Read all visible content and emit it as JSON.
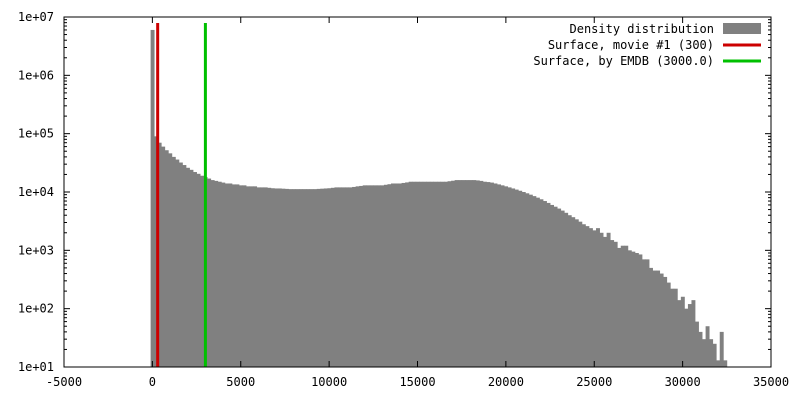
{
  "chart_data": {
    "type": "bar",
    "subtype": "histogram",
    "title": "",
    "xlabel": "",
    "ylabel": "",
    "y_scale": "log",
    "xlim": [
      -5000,
      35000
    ],
    "ylim": [
      10,
      10000000
    ],
    "grid": false,
    "legend_position": "top-right",
    "x_ticks": [
      "-5000",
      "0",
      "5000",
      "10000",
      "15000",
      "20000",
      "25000",
      "30000",
      "35000"
    ],
    "x_tick_values": [
      -5000,
      0,
      5000,
      10000,
      15000,
      20000,
      25000,
      30000,
      35000
    ],
    "y_ticks": [
      "1e+01",
      "1e+02",
      "1e+03",
      "1e+04",
      "1e+05",
      "1e+06",
      "1e+07"
    ],
    "y_tick_values": [
      10,
      100,
      1000,
      10000,
      100000,
      1000000,
      10000000
    ],
    "bin_width": 200,
    "histogram": {
      "name": "Density distribution",
      "color": "#808080",
      "bin_start": [
        -100,
        100,
        300,
        500,
        700,
        900,
        1100,
        1300,
        1500,
        1700,
        1900,
        2100,
        2300,
        2500,
        2700,
        2900,
        3100,
        3300,
        3500,
        3700,
        3900,
        4100,
        4300,
        4500,
        4700,
        4900,
        5100,
        5300,
        5500,
        5700,
        5900,
        6100,
        6300,
        6500,
        6700,
        6900,
        7100,
        7300,
        7500,
        7700,
        7900,
        8100,
        8300,
        8500,
        8700,
        8900,
        9100,
        9300,
        9500,
        9700,
        9900,
        10100,
        10300,
        10500,
        10700,
        10900,
        11100,
        11300,
        11500,
        11700,
        11900,
        12100,
        12300,
        12500,
        12700,
        12900,
        13100,
        13300,
        13500,
        13700,
        13900,
        14100,
        14300,
        14500,
        14700,
        14900,
        15100,
        15300,
        15500,
        15700,
        15900,
        16100,
        16300,
        16500,
        16700,
        16900,
        17100,
        17300,
        17500,
        17700,
        17900,
        18100,
        18300,
        18500,
        18700,
        18900,
        19100,
        19300,
        19500,
        19700,
        19900,
        20100,
        20300,
        20500,
        20700,
        20900,
        21100,
        21300,
        21500,
        21700,
        21900,
        22100,
        22300,
        22500,
        22700,
        22900,
        23100,
        23300,
        23500,
        23700,
        23900,
        24100,
        24300,
        24500,
        24700,
        24900,
        25100,
        25300,
        25500,
        25700,
        25900,
        26100,
        26300,
        26500,
        26700,
        26900,
        27100,
        27300,
        27500,
        27700,
        27900,
        28100,
        28300,
        28500,
        28700,
        28900,
        29100,
        29300,
        29500,
        29700,
        29900,
        30100,
        30300,
        30500,
        30700,
        30900,
        31100,
        31300,
        31500,
        31700,
        31900,
        32100,
        32300,
        32500
      ],
      "values": [
        6000000,
        90000,
        70000,
        60000,
        52000,
        46000,
        40000,
        36000,
        32000,
        29000,
        26000,
        24000,
        22000,
        20500,
        19000,
        18000,
        17000,
        16000,
        15500,
        15000,
        14500,
        14000,
        14000,
        13500,
        13500,
        13000,
        13000,
        12500,
        12500,
        12500,
        12000,
        12000,
        12000,
        11800,
        11600,
        11500,
        11500,
        11400,
        11300,
        11200,
        11200,
        11200,
        11200,
        11200,
        11200,
        11200,
        11200,
        11300,
        11400,
        11500,
        11600,
        11800,
        12000,
        12000,
        12000,
        12000,
        12000,
        12200,
        12500,
        12700,
        13000,
        13000,
        13000,
        13000,
        13000,
        13000,
        13300,
        13600,
        14000,
        14000,
        14000,
        14300,
        14600,
        15000,
        15000,
        15000,
        15000,
        15000,
        15000,
        15000,
        15000,
        15000,
        15000,
        15000,
        15300,
        15600,
        16000,
        16000,
        16000,
        16000,
        16000,
        16000,
        15800,
        15500,
        15000,
        14800,
        14500,
        14000,
        13500,
        13000,
        12500,
        12000,
        11500,
        11000,
        10500,
        10000,
        9500,
        9000,
        8500,
        8000,
        7500,
        7000,
        6500,
        6000,
        5600,
        5200,
        4800,
        4400,
        4000,
        3700,
        3400,
        3100,
        2800,
        2600,
        2400,
        2200,
        2400,
        2000,
        1700,
        2000,
        1500,
        1400,
        1100,
        1200,
        1200,
        1000,
        950,
        900,
        850,
        700,
        700,
        500,
        450,
        450,
        400,
        350,
        280,
        220,
        220,
        140,
        160,
        100,
        120,
        140,
        60,
        40,
        30,
        50,
        30,
        25,
        13,
        40,
        13
      ]
    },
    "lines": [
      {
        "name": "Surface, movie #1 (300)",
        "x": 300,
        "color": "#cc0000"
      },
      {
        "name": "Surface, by EMDB (3000.0)",
        "x": 3000,
        "color": "#00c000"
      }
    ]
  }
}
